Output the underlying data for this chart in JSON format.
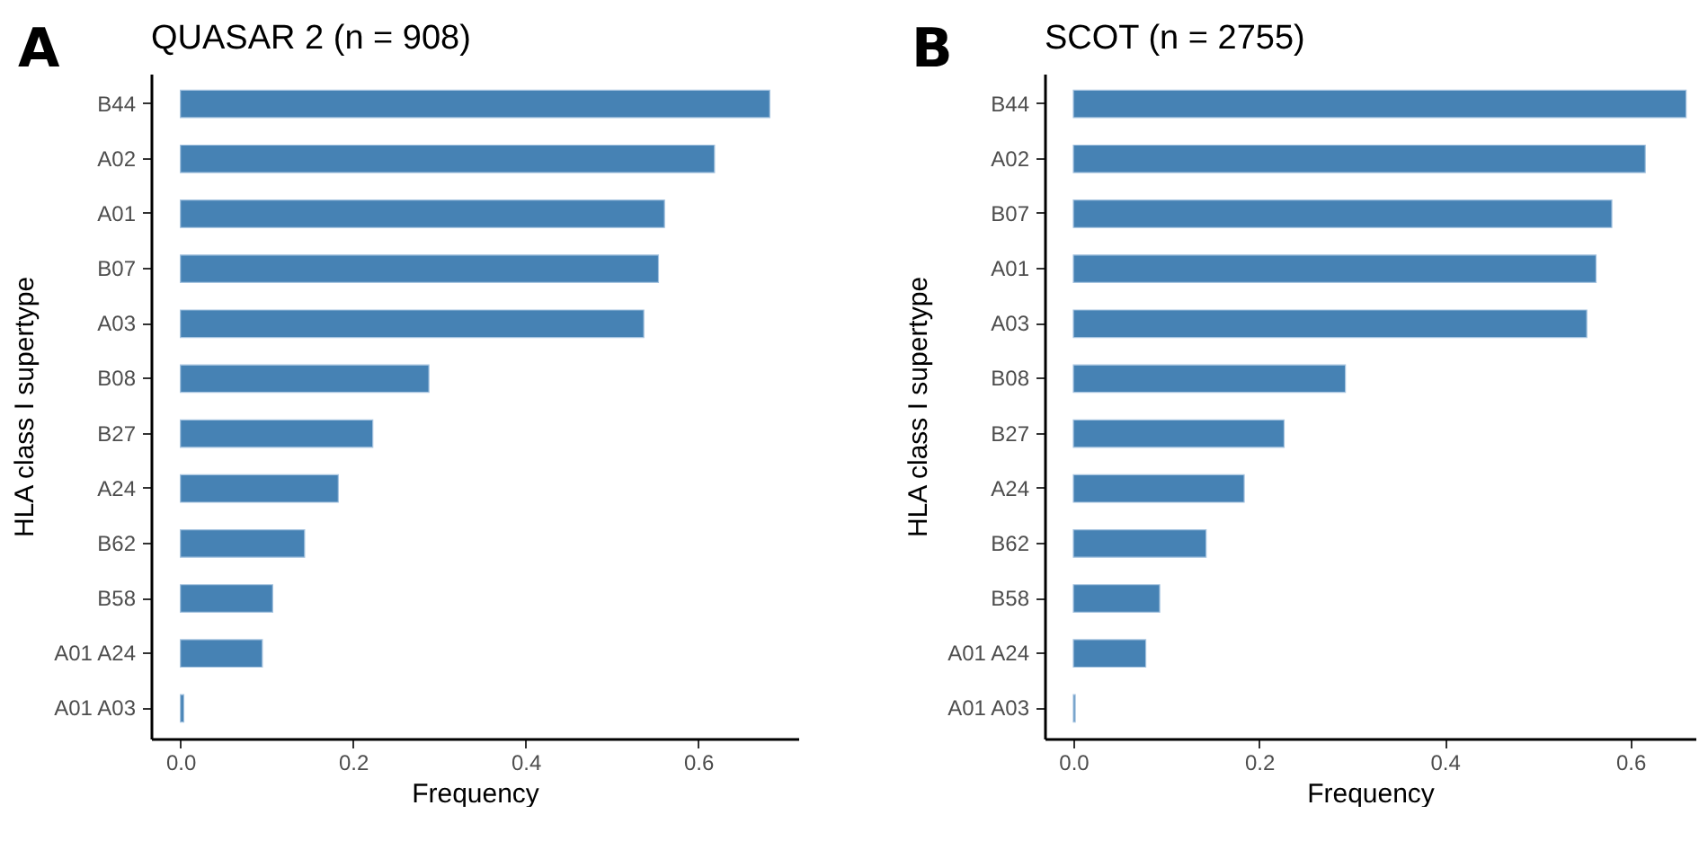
{
  "chart_data": [
    {
      "type": "bar",
      "orientation": "horizontal",
      "title": "QUASAR 2 (n = 908)",
      "xlabel": "Frequency",
      "ylabel": "HLA class I supertype",
      "annotations": [
        "A"
      ],
      "categories": [
        "B44",
        "A02",
        "A01",
        "B07",
        "A03",
        "B08",
        "B27",
        "A24",
        "B62",
        "B58",
        "A01 A24",
        "A01 A03"
      ],
      "values": [
        0.683,
        0.619,
        0.561,
        0.554,
        0.537,
        0.288,
        0.223,
        0.183,
        0.144,
        0.107,
        0.095,
        0.004
      ],
      "color": "#4682b4",
      "xlim": [
        -0.034,
        0.716
      ],
      "xticks": [
        {
          "value": 0,
          "label": "0.0"
        },
        0.2,
        0.4,
        0.6
      ]
    },
    {
      "type": "bar",
      "orientation": "horizontal",
      "title": "SCOT (n = 2755)",
      "xlabel": "Frequency",
      "ylabel": "HLA class I supertype",
      "annotations": [
        "B"
      ],
      "categories": [
        "B44",
        "A02",
        "B07",
        "A01",
        "A03",
        "B08",
        "B27",
        "A24",
        "B62",
        "B58",
        "A01 A24",
        "A01 A03"
      ],
      "values": [
        0.66,
        0.616,
        0.58,
        0.563,
        0.553,
        0.293,
        0.227,
        0.184,
        0.143,
        0.093,
        0.078,
        0.002
      ],
      "color": "#4682b4",
      "xlim": [
        -0.031,
        0.67
      ],
      "xticks": [
        {
          "value": 0,
          "label": "0.0"
        },
        0.2,
        0.4,
        0.6
      ]
    }
  ]
}
